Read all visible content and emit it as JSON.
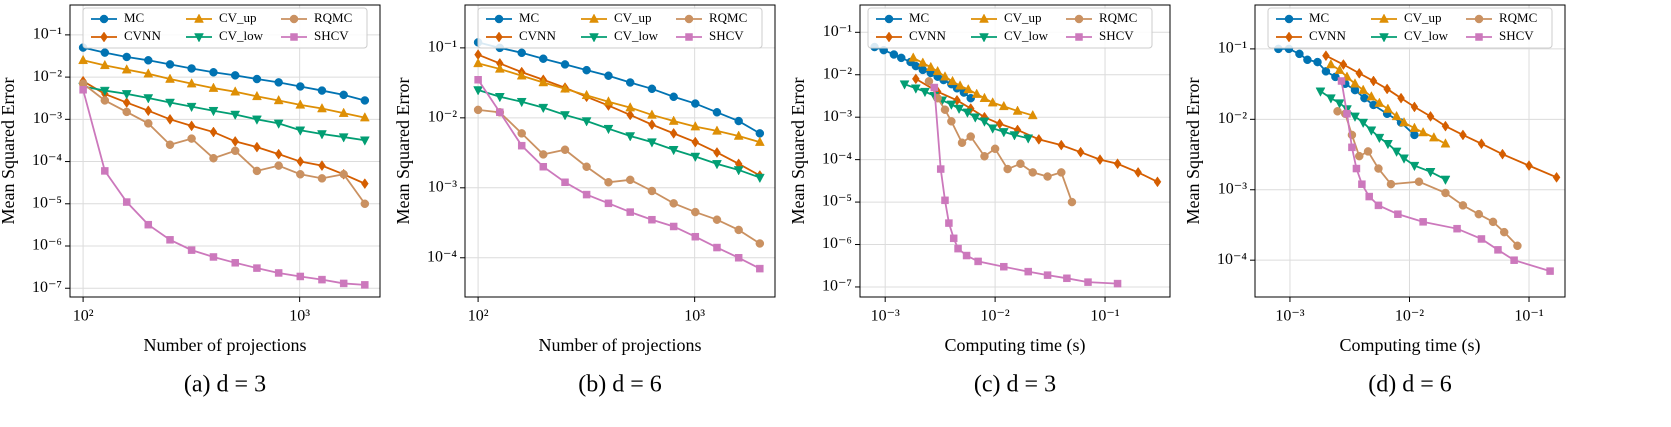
{
  "chart_data": [
    {
      "type": "line",
      "caption": "(a) d = 3",
      "xlabel": "Number of projections",
      "ylabel": "Mean Squared Error",
      "xscale": "log",
      "yscale": "log",
      "grid": true,
      "legend": "upper center",
      "xlim": [
        87,
        2350
      ],
      "ylim": [
        6.2e-08,
        0.51
      ],
      "xticks": [
        {
          "value": 100,
          "label": "10²"
        },
        {
          "value": 1000,
          "label": "10³"
        }
      ],
      "yticks": [
        {
          "value": 0.1,
          "label": "10⁻¹"
        },
        {
          "value": 0.01,
          "label": "10⁻²"
        },
        {
          "value": 0.001,
          "label": "10⁻³"
        },
        {
          "value": 0.0001,
          "label": "10⁻⁴"
        },
        {
          "value": 1e-05,
          "label": "10⁻⁵"
        },
        {
          "value": 1e-06,
          "label": "10⁻⁶"
        },
        {
          "value": 1e-07,
          "label": "10⁻⁷"
        }
      ],
      "x": [
        100,
        126,
        159,
        200,
        252,
        317,
        400,
        504,
        635,
        800,
        1007,
        1268,
        1597,
        2000
      ],
      "series": [
        {
          "name": "MC",
          "color": "#0173b2",
          "marker": "o",
          "values": [
            0.05,
            0.038,
            0.03,
            0.025,
            0.02,
            0.016,
            0.013,
            0.011,
            0.009,
            0.0075,
            0.006,
            0.0048,
            0.0038,
            0.0028
          ]
        },
        {
          "name": "CVNN",
          "color": "#d55e00",
          "marker": "D",
          "values": [
            0.008,
            0.004,
            0.0025,
            0.0016,
            0.001,
            0.0007,
            0.0005,
            0.0003,
            0.00022,
            0.00015,
            0.0001,
            8e-05,
            5e-05,
            3e-05
          ]
        },
        {
          "name": "CV_up",
          "color": "#de8f05",
          "marker": "^",
          "values": [
            0.025,
            0.019,
            0.015,
            0.012,
            0.009,
            0.007,
            0.0055,
            0.0045,
            0.0035,
            0.0028,
            0.0022,
            0.0018,
            0.0014,
            0.0011
          ]
        },
        {
          "name": "CV_low",
          "color": "#029e73",
          "marker": "v",
          "values": [
            0.006,
            0.0048,
            0.004,
            0.0032,
            0.0025,
            0.002,
            0.0016,
            0.0013,
            0.001,
            0.0008,
            0.00055,
            0.00045,
            0.00038,
            0.00032
          ]
        },
        {
          "name": "RQMC",
          "color": "#ca9161",
          "marker": "o",
          "values": [
            0.007,
            0.0028,
            0.0015,
            0.0008,
            0.00025,
            0.00035,
            0.00012,
            0.00018,
            6e-05,
            8e-05,
            5e-05,
            4e-05,
            5e-05,
            1e-05
          ]
        },
        {
          "name": "SHCV",
          "color": "#cc78bc",
          "marker": "s",
          "values": [
            0.005,
            6e-05,
            1.1e-05,
            3.2e-06,
            1.4e-06,
            8e-07,
            5.5e-07,
            4e-07,
            3e-07,
            2.3e-07,
            1.9e-07,
            1.6e-07,
            1.3e-07,
            1.2e-07
          ]
        }
      ]
    },
    {
      "type": "line",
      "caption": "(b) d = 6",
      "xlabel": "Number of projections",
      "ylabel": "Mean Squared Error",
      "xscale": "log",
      "yscale": "log",
      "grid": true,
      "legend": "upper center",
      "xlim": [
        87,
        2350
      ],
      "ylim": [
        2.75e-05,
        0.41
      ],
      "xticks": [
        {
          "value": 100,
          "label": "10²"
        },
        {
          "value": 1000,
          "label": "10³"
        }
      ],
      "yticks": [
        {
          "value": 0.1,
          "label": "10⁻¹"
        },
        {
          "value": 0.01,
          "label": "10⁻²"
        },
        {
          "value": 0.001,
          "label": "10⁻³"
        },
        {
          "value": 0.0001,
          "label": "10⁻⁴"
        }
      ],
      "x": [
        100,
        126,
        159,
        200,
        252,
        317,
        400,
        504,
        635,
        800,
        1007,
        1268,
        1597,
        2000
      ],
      "series": [
        {
          "name": "MC",
          "color": "#0173b2",
          "marker": "o",
          "values": [
            0.12,
            0.1,
            0.085,
            0.07,
            0.058,
            0.048,
            0.04,
            0.032,
            0.026,
            0.02,
            0.016,
            0.012,
            0.009,
            0.006
          ]
        },
        {
          "name": "CVNN",
          "color": "#d55e00",
          "marker": "D",
          "values": [
            0.08,
            0.06,
            0.045,
            0.035,
            0.027,
            0.02,
            0.015,
            0.011,
            0.008,
            0.006,
            0.0045,
            0.0032,
            0.0022,
            0.0015
          ]
        },
        {
          "name": "CV_up",
          "color": "#de8f05",
          "marker": "^",
          "values": [
            0.06,
            0.05,
            0.04,
            0.032,
            0.026,
            0.021,
            0.017,
            0.014,
            0.011,
            0.009,
            0.0075,
            0.0065,
            0.0055,
            0.0045
          ]
        },
        {
          "name": "CV_low",
          "color": "#029e73",
          "marker": "v",
          "values": [
            0.025,
            0.02,
            0.017,
            0.014,
            0.011,
            0.009,
            0.007,
            0.0055,
            0.0045,
            0.0035,
            0.0028,
            0.0022,
            0.0018,
            0.0014
          ]
        },
        {
          "name": "RQMC",
          "color": "#ca9161",
          "marker": "o",
          "values": [
            0.013,
            0.012,
            0.006,
            0.003,
            0.0035,
            0.002,
            0.0012,
            0.0013,
            0.0009,
            0.0006,
            0.00045,
            0.00035,
            0.00025,
            0.00016
          ]
        },
        {
          "name": "SHCV",
          "color": "#cc78bc",
          "marker": "s",
          "values": [
            0.035,
            0.012,
            0.004,
            0.002,
            0.0012,
            0.0008,
            0.0006,
            0.00045,
            0.00035,
            0.00028,
            0.0002,
            0.00014,
            0.0001,
            7e-05
          ]
        }
      ]
    },
    {
      "type": "line",
      "caption": "(c) d = 3",
      "xlabel": "Computing time (s)",
      "ylabel": "Mean Squared Error",
      "xscale": "log",
      "yscale": "log",
      "grid": true,
      "legend": "upper left",
      "xlim": [
        0.00059,
        0.39
      ],
      "ylim": [
        5.8e-08,
        0.44
      ],
      "xticks": [
        {
          "value": 0.001,
          "label": "10⁻³"
        },
        {
          "value": 0.01,
          "label": "10⁻²"
        },
        {
          "value": 0.1,
          "label": "10⁻¹"
        }
      ],
      "yticks": [
        {
          "value": 0.1,
          "label": "10⁻¹"
        },
        {
          "value": 0.01,
          "label": "10⁻²"
        },
        {
          "value": 0.001,
          "label": "10⁻³"
        },
        {
          "value": 0.0001,
          "label": "10⁻⁴"
        },
        {
          "value": 1e-05,
          "label": "10⁻⁵"
        },
        {
          "value": 1e-06,
          "label": "10⁻⁶"
        },
        {
          "value": 1e-07,
          "label": "10⁻⁷"
        }
      ],
      "series": [
        {
          "name": "MC",
          "color": "#0173b2",
          "marker": "o",
          "x": [
            0.0008,
            0.00097,
            0.0012,
            0.0014,
            0.0017,
            0.0019,
            0.0022,
            0.0026,
            0.003,
            0.0034,
            0.004,
            0.0045,
            0.0052,
            0.006
          ],
          "values": [
            0.045,
            0.038,
            0.03,
            0.025,
            0.02,
            0.016,
            0.013,
            0.011,
            0.009,
            0.0075,
            0.006,
            0.0048,
            0.0038,
            0.0028
          ]
        },
        {
          "name": "CVNN",
          "color": "#d55e00",
          "marker": "D",
          "x": [
            0.0019,
            0.003,
            0.0045,
            0.006,
            0.008,
            0.011,
            0.016,
            0.025,
            0.04,
            0.06,
            0.09,
            0.13,
            0.2,
            0.3
          ],
          "values": [
            0.008,
            0.004,
            0.0025,
            0.0016,
            0.001,
            0.0007,
            0.0005,
            0.0003,
            0.00022,
            0.00015,
            0.0001,
            8e-05,
            5e-05,
            3e-05
          ]
        },
        {
          "name": "CV_up",
          "color": "#de8f05",
          "marker": "^",
          "x": [
            0.0018,
            0.0022,
            0.0026,
            0.003,
            0.0035,
            0.0041,
            0.0048,
            0.0057,
            0.0068,
            0.008,
            0.0095,
            0.012,
            0.016,
            0.022
          ],
          "values": [
            0.025,
            0.019,
            0.015,
            0.012,
            0.009,
            0.007,
            0.0055,
            0.0045,
            0.0035,
            0.0028,
            0.0022,
            0.0018,
            0.0014,
            0.0011
          ]
        },
        {
          "name": "CV_low",
          "color": "#029e73",
          "marker": "v",
          "x": [
            0.0015,
            0.0019,
            0.0023,
            0.0028,
            0.0033,
            0.004,
            0.0047,
            0.0056,
            0.0066,
            0.008,
            0.0095,
            0.012,
            0.015,
            0.02
          ],
          "values": [
            0.006,
            0.0048,
            0.004,
            0.0032,
            0.0025,
            0.002,
            0.0016,
            0.0013,
            0.001,
            0.0008,
            0.00055,
            0.00045,
            0.00038,
            0.00032
          ]
        },
        {
          "name": "RQMC",
          "color": "#ca9161",
          "marker": "o",
          "x": [
            0.0025,
            0.003,
            0.0035,
            0.004,
            0.005,
            0.006,
            0.008,
            0.01,
            0.013,
            0.017,
            0.022,
            0.03,
            0.04,
            0.05
          ],
          "values": [
            0.007,
            0.0028,
            0.0015,
            0.0008,
            0.00025,
            0.00035,
            0.00012,
            0.00018,
            6e-05,
            8e-05,
            5e-05,
            4e-05,
            5e-05,
            1e-05
          ]
        },
        {
          "name": "SHCV",
          "color": "#cc78bc",
          "marker": "s",
          "x": [
            0.0028,
            0.0032,
            0.0035,
            0.0038,
            0.0042,
            0.0046,
            0.0055,
            0.007,
            0.012,
            0.02,
            0.03,
            0.045,
            0.07,
            0.13
          ],
          "values": [
            0.005,
            6e-05,
            1.1e-05,
            3.2e-06,
            1.4e-06,
            8e-07,
            5.5e-07,
            4e-07,
            3e-07,
            2.3e-07,
            1.9e-07,
            1.6e-07,
            1.3e-07,
            1.2e-07
          ]
        }
      ]
    },
    {
      "type": "line",
      "caption": "(d) d = 6",
      "xlabel": "Computing time (s)",
      "ylabel": "Mean Squared Error",
      "xscale": "log",
      "yscale": "log",
      "grid": true,
      "legend": "upper center",
      "xlim": [
        0.00051,
        0.2
      ],
      "ylim": [
        3e-05,
        0.42
      ],
      "xticks": [
        {
          "value": 0.001,
          "label": "10⁻³"
        },
        {
          "value": 0.01,
          "label": "10⁻²"
        },
        {
          "value": 0.1,
          "label": "10⁻¹"
        }
      ],
      "yticks": [
        {
          "value": 0.1,
          "label": "10⁻¹"
        },
        {
          "value": 0.01,
          "label": "10⁻²"
        },
        {
          "value": 0.001,
          "label": "10⁻³"
        },
        {
          "value": 0.0001,
          "label": "10⁻⁴"
        }
      ],
      "series": [
        {
          "name": "MC",
          "color": "#0173b2",
          "marker": "o",
          "x": [
            0.0008,
            0.00098,
            0.0012,
            0.0014,
            0.0017,
            0.002,
            0.0024,
            0.0029,
            0.0035,
            0.0042,
            0.005,
            0.0065,
            0.0085,
            0.011
          ],
          "values": [
            0.1,
            0.1,
            0.085,
            0.07,
            0.065,
            0.048,
            0.04,
            0.032,
            0.026,
            0.02,
            0.016,
            0.012,
            0.009,
            0.006
          ]
        },
        {
          "name": "CVNN",
          "color": "#d55e00",
          "marker": "D",
          "x": [
            0.002,
            0.0028,
            0.0038,
            0.005,
            0.0065,
            0.0085,
            0.011,
            0.015,
            0.02,
            0.028,
            0.04,
            0.06,
            0.1,
            0.17
          ],
          "values": [
            0.08,
            0.06,
            0.045,
            0.035,
            0.027,
            0.02,
            0.015,
            0.011,
            0.008,
            0.006,
            0.0045,
            0.0032,
            0.0022,
            0.0015
          ]
        },
        {
          "name": "CV_up",
          "color": "#de8f05",
          "marker": "^",
          "x": [
            0.0022,
            0.0026,
            0.003,
            0.0035,
            0.0041,
            0.0048,
            0.0056,
            0.0066,
            0.0078,
            0.009,
            0.011,
            0.013,
            0.016,
            0.02
          ],
          "values": [
            0.06,
            0.05,
            0.04,
            0.032,
            0.026,
            0.021,
            0.017,
            0.014,
            0.011,
            0.009,
            0.0075,
            0.0065,
            0.0055,
            0.0045
          ]
        },
        {
          "name": "CV_low",
          "color": "#029e73",
          "marker": "v",
          "x": [
            0.0018,
            0.0022,
            0.0026,
            0.003,
            0.0035,
            0.0041,
            0.0048,
            0.0056,
            0.0066,
            0.0078,
            0.009,
            0.011,
            0.015,
            0.02
          ],
          "values": [
            0.025,
            0.02,
            0.017,
            0.014,
            0.011,
            0.009,
            0.007,
            0.0055,
            0.0045,
            0.0035,
            0.0028,
            0.0022,
            0.0018,
            0.0014
          ]
        },
        {
          "name": "RQMC",
          "color": "#ca9161",
          "marker": "o",
          "x": [
            0.0025,
            0.0029,
            0.0033,
            0.0038,
            0.0045,
            0.0055,
            0.007,
            0.012,
            0.02,
            0.028,
            0.038,
            0.05,
            0.062,
            0.08
          ],
          "values": [
            0.013,
            0.012,
            0.006,
            0.003,
            0.0035,
            0.002,
            0.0012,
            0.0013,
            0.0009,
            0.0006,
            0.00045,
            0.00035,
            0.00025,
            0.00016
          ]
        },
        {
          "name": "SHCV",
          "color": "#cc78bc",
          "marker": "s",
          "x": [
            0.0027,
            0.003,
            0.0033,
            0.0036,
            0.004,
            0.0046,
            0.0055,
            0.008,
            0.013,
            0.025,
            0.04,
            0.055,
            0.075,
            0.15
          ],
          "values": [
            0.035,
            0.012,
            0.004,
            0.002,
            0.0012,
            0.0008,
            0.0006,
            0.00045,
            0.00035,
            0.00028,
            0.0002,
            0.00014,
            0.0001,
            7e-05
          ]
        }
      ]
    }
  ]
}
